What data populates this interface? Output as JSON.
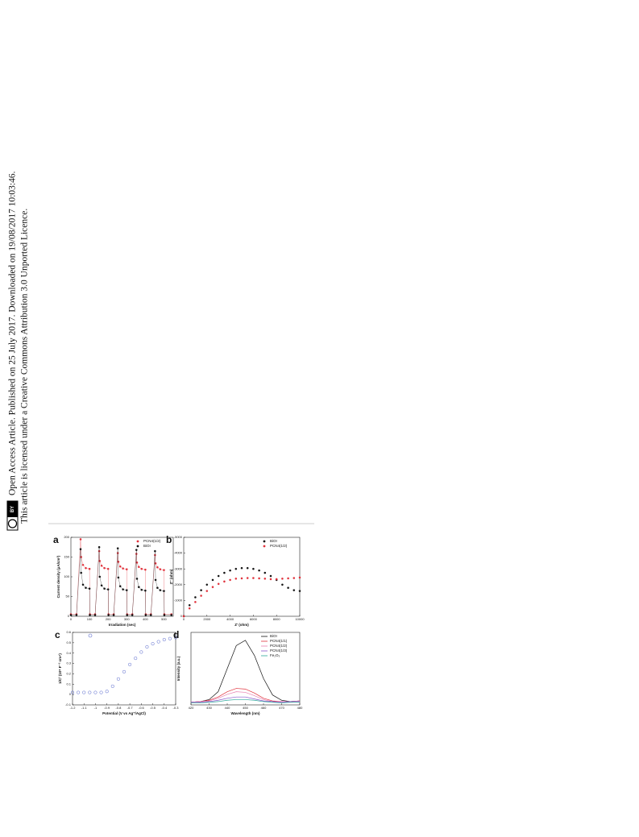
{
  "sidebar": {
    "line1": "Open Access Article. Published on 25 July 2017. Downloaded on 19/08/2017 10:03:46.",
    "line2": "This article is licensed under a Creative Commons Attribution 3.0 Unported Licence.",
    "badge": "BY"
  },
  "chart_data": [
    {
      "type": "scatter",
      "label": "a",
      "xlabel": "Irradiation (sec)",
      "ylabel": "Current density (μA/cm²)",
      "xlim": [
        0,
        550
      ],
      "xticks": [
        0,
        100,
        200,
        300,
        400,
        500
      ],
      "ylim": [
        0,
        200
      ],
      "yticks": [
        0,
        50,
        100,
        150,
        200
      ],
      "legend": "top-right",
      "connect": true,
      "series": [
        {
          "name": "PCN4(1/2)",
          "color": "#e0303a",
          "x": [
            0,
            30,
            52,
            55,
            65,
            80,
            100,
            102,
            130,
            152,
            155,
            165,
            180,
            200,
            202,
            230,
            252,
            255,
            265,
            280,
            300,
            302,
            330,
            352,
            355,
            365,
            380,
            400,
            402,
            430,
            452,
            455,
            465,
            480,
            500,
            502,
            540
          ],
          "values": [
            5,
            5,
            195,
            150,
            130,
            122,
            120,
            5,
            5,
            165,
            140,
            128,
            122,
            120,
            5,
            5,
            160,
            138,
            126,
            121,
            119,
            5,
            5,
            158,
            136,
            125,
            120,
            118,
            5,
            5,
            155,
            134,
            124,
            119,
            117,
            5,
            5
          ]
        },
        {
          "name": "BiOI",
          "color": "#111111",
          "x": [
            0,
            30,
            52,
            55,
            65,
            80,
            100,
            102,
            130,
            152,
            155,
            165,
            180,
            200,
            202,
            230,
            252,
            255,
            265,
            280,
            300,
            302,
            330,
            352,
            355,
            365,
            380,
            400,
            402,
            430,
            452,
            455,
            465,
            480,
            500,
            502,
            540
          ],
          "values": [
            3,
            3,
            170,
            110,
            80,
            72,
            70,
            3,
            3,
            175,
            100,
            78,
            70,
            68,
            3,
            3,
            172,
            98,
            76,
            68,
            66,
            3,
            3,
            168,
            95,
            74,
            67,
            65,
            3,
            3,
            165,
            92,
            72,
            66,
            64,
            3,
            3
          ]
        }
      ]
    },
    {
      "type": "scatter",
      "label": "b",
      "xlabel": "Z' (ohm)",
      "ylabel": "Z'' (ohm)",
      "xlim": [
        0,
        10000
      ],
      "xticks": [
        0,
        2000,
        4000,
        6000,
        8000,
        10000
      ],
      "ylim": [
        0,
        -5000
      ],
      "yticks": [
        0,
        -1000,
        -2000,
        -3000,
        -4000,
        -5000
      ],
      "legend": "top-right",
      "connect": false,
      "series": [
        {
          "name": "BiOI",
          "color": "#111111",
          "x": [
            0,
            500,
            1000,
            1500,
            2000,
            2500,
            3000,
            3500,
            4000,
            4500,
            5000,
            5500,
            6000,
            6500,
            7000,
            7500,
            8000,
            8500,
            9000,
            9500,
            10000
          ],
          "values": [
            0,
            -700,
            -1200,
            -1650,
            -2000,
            -2300,
            -2550,
            -2750,
            -2900,
            -3000,
            -3050,
            -3050,
            -3000,
            -2900,
            -2750,
            -2550,
            -2300,
            -2000,
            -1800,
            -1650,
            -1600
          ]
        },
        {
          "name": "PCN4(1/2)",
          "color": "#e0303a",
          "x": [
            0,
            500,
            1000,
            1500,
            2000,
            2500,
            3000,
            3500,
            4000,
            4500,
            5000,
            5500,
            6000,
            6500,
            7000,
            7500,
            8000,
            8500,
            9000,
            9500,
            10000
          ],
          "values": [
            0,
            -500,
            -900,
            -1300,
            -1600,
            -1850,
            -2050,
            -2200,
            -2300,
            -2380,
            -2400,
            -2420,
            -2420,
            -2400,
            -2380,
            -2350,
            -2350,
            -2380,
            -2400,
            -2420,
            -2450
          ]
        }
      ]
    },
    {
      "type": "scatter",
      "label": "c",
      "xlabel": "Potential (V vs Ag⁺/AgCl)",
      "ylabel": "1/C² (10⁹ F⁻² cm⁴)",
      "xlim": [
        -1.2,
        -0.3
      ],
      "xticks": [
        -1.2,
        -1.1,
        -1.0,
        -0.9,
        -0.8,
        -0.7,
        -0.6,
        -0.5,
        -0.4,
        -0.3
      ],
      "ylim": [
        -0.1,
        0.6
      ],
      "yticks": [
        -0.1,
        0.0,
        0.1,
        0.2,
        0.3,
        0.4,
        0.5,
        0.6
      ],
      "connect": false,
      "hollow": true,
      "series": [
        {
          "color": "#5566cc",
          "x": [
            -1.2,
            -1.15,
            -1.1,
            -1.05,
            -1.0,
            -0.95,
            -0.9,
            -0.85,
            -0.8,
            -0.75,
            -0.7,
            -0.65,
            -0.6,
            -0.55,
            -0.5,
            -0.45,
            -0.4,
            -0.35,
            -0.3
          ],
          "values": [
            0.02,
            0.02,
            0.02,
            0.02,
            0.02,
            0.02,
            0.03,
            0.08,
            0.15,
            0.22,
            0.29,
            0.35,
            0.41,
            0.46,
            0.49,
            0.51,
            0.53,
            0.54,
            0.55
          ]
        }
      ]
    },
    {
      "type": "line",
      "label": "d",
      "xlabel": "Wavelength (nm)",
      "ylabel": "Intensity (a.u.)",
      "xlim": [
        420,
        480
      ],
      "xticks": [
        420,
        430,
        440,
        450,
        460,
        470,
        480
      ],
      "ylim": [
        0,
        1.1
      ],
      "legend": "top-right",
      "series": [
        {
          "name": "BiOI",
          "color": "#111111",
          "x": [
            420,
            425,
            430,
            435,
            440,
            445,
            450,
            455,
            460,
            465,
            470,
            475,
            480
          ],
          "values": [
            0.04,
            0.05,
            0.08,
            0.2,
            0.55,
            0.9,
            0.98,
            0.75,
            0.4,
            0.15,
            0.07,
            0.05,
            0.06
          ]
        },
        {
          "name": "PCN4(1/1)",
          "color": "#e0303a",
          "x": [
            420,
            425,
            430,
            435,
            440,
            445,
            450,
            455,
            460,
            465,
            470,
            475,
            480
          ],
          "values": [
            0.04,
            0.05,
            0.07,
            0.12,
            0.2,
            0.25,
            0.24,
            0.18,
            0.1,
            0.06,
            0.05,
            0.05,
            0.06
          ]
        },
        {
          "name": "PCN4(1/2)",
          "color": "#e87fb0",
          "x": [
            420,
            425,
            430,
            435,
            440,
            445,
            450,
            455,
            460,
            465,
            470,
            475,
            480
          ],
          "values": [
            0.04,
            0.05,
            0.06,
            0.1,
            0.16,
            0.2,
            0.19,
            0.14,
            0.08,
            0.05,
            0.05,
            0.05,
            0.06
          ]
        },
        {
          "name": "PCN4(1/3)",
          "color": "#8855cc",
          "x": [
            420,
            425,
            430,
            435,
            440,
            445,
            450,
            455,
            460,
            465,
            470,
            475,
            480
          ],
          "values": [
            0.04,
            0.04,
            0.05,
            0.07,
            0.1,
            0.12,
            0.12,
            0.09,
            0.06,
            0.05,
            0.04,
            0.05,
            0.05
          ]
        },
        {
          "name": "Fe₂O₃",
          "color": "#2aa89a",
          "x": [
            420,
            425,
            430,
            435,
            440,
            445,
            450,
            455,
            460,
            465,
            470,
            475,
            480
          ],
          "values": [
            0.03,
            0.03,
            0.04,
            0.05,
            0.07,
            0.08,
            0.08,
            0.07,
            0.05,
            0.04,
            0.03,
            0.04,
            0.04
          ]
        }
      ]
    }
  ]
}
